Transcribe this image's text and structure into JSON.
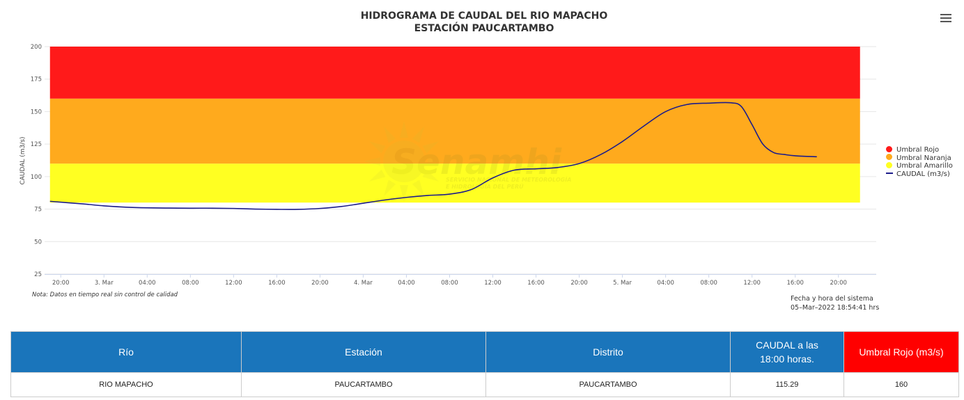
{
  "chart_data": {
    "type": "line",
    "title": "HIDROGRAMA DE CAUDAL DEL RIO MAPACHO",
    "subtitle": "ESTACIÓN PAUCARTAMBO",
    "ylabel": "CAUDAL (m3/s)",
    "ylim": [
      25,
      200
    ],
    "yticks": [
      25,
      50,
      75,
      100,
      125,
      150,
      175,
      200
    ],
    "xlim": [
      "2022-03-02T18:30",
      "2022-03-05T23:30"
    ],
    "xticks": [
      {
        "t": "2022-03-02T20:00",
        "label": "20:00"
      },
      {
        "t": "2022-03-03T00:00",
        "label": "3. Mar"
      },
      {
        "t": "2022-03-03T04:00",
        "label": "04:00"
      },
      {
        "t": "2022-03-03T08:00",
        "label": "08:00"
      },
      {
        "t": "2022-03-03T12:00",
        "label": "12:00"
      },
      {
        "t": "2022-03-03T16:00",
        "label": "16:00"
      },
      {
        "t": "2022-03-03T20:00",
        "label": "20:00"
      },
      {
        "t": "2022-03-04T00:00",
        "label": "4. Mar"
      },
      {
        "t": "2022-03-04T04:00",
        "label": "04:00"
      },
      {
        "t": "2022-03-04T08:00",
        "label": "08:00"
      },
      {
        "t": "2022-03-04T12:00",
        "label": "12:00"
      },
      {
        "t": "2022-03-04T16:00",
        "label": "16:00"
      },
      {
        "t": "2022-03-04T20:00",
        "label": "20:00"
      },
      {
        "t": "2022-03-05T00:00",
        "label": "5. Mar"
      },
      {
        "t": "2022-03-05T04:00",
        "label": "04:00"
      },
      {
        "t": "2022-03-05T08:00",
        "label": "08:00"
      },
      {
        "t": "2022-03-05T12:00",
        "label": "12:00"
      },
      {
        "t": "2022-03-05T16:00",
        "label": "16:00"
      },
      {
        "t": "2022-03-05T20:00",
        "label": "20:00"
      }
    ],
    "bands": [
      {
        "name": "Umbral Amarillo",
        "from": 80,
        "to": 110,
        "color": "#ffff22"
      },
      {
        "name": "Umbral Naranja",
        "from": 110,
        "to": 160,
        "color": "#ffaa1d"
      },
      {
        "name": "Umbral Rojo",
        "from": 160,
        "to": 200,
        "color": "#ff1a1a"
      }
    ],
    "bands_x": [
      "2022-03-02T19:00",
      "2022-03-05T22:00"
    ],
    "series": [
      {
        "name": "CAUDAL (m3/s)",
        "color": "#1c1c8a",
        "points": [
          [
            "2022-03-02T19:00",
            81
          ],
          [
            "2022-03-02T22:00",
            79
          ],
          [
            "2022-03-03T00:00",
            77.5
          ],
          [
            "2022-03-03T02:00",
            76.5
          ],
          [
            "2022-03-03T04:00",
            76
          ],
          [
            "2022-03-03T06:00",
            75.8
          ],
          [
            "2022-03-03T08:00",
            75.7
          ],
          [
            "2022-03-03T10:00",
            75.7
          ],
          [
            "2022-03-03T12:00",
            75.5
          ],
          [
            "2022-03-03T14:00",
            75
          ],
          [
            "2022-03-03T16:00",
            74.8
          ],
          [
            "2022-03-03T18:00",
            74.8
          ],
          [
            "2022-03-03T20:00",
            75.5
          ],
          [
            "2022-03-03T22:00",
            77
          ],
          [
            "2022-03-04T00:00",
            79.5
          ],
          [
            "2022-03-04T02:00",
            82
          ],
          [
            "2022-03-04T04:00",
            84
          ],
          [
            "2022-03-04T06:00",
            85.5
          ],
          [
            "2022-03-04T08:00",
            86.5
          ],
          [
            "2022-03-04T10:00",
            90
          ],
          [
            "2022-03-04T12:00",
            99
          ],
          [
            "2022-03-04T14:00",
            105
          ],
          [
            "2022-03-04T16:00",
            106
          ],
          [
            "2022-03-04T18:00",
            107
          ],
          [
            "2022-03-04T20:00",
            110
          ],
          [
            "2022-03-04T22:00",
            117
          ],
          [
            "2022-03-05T00:00",
            127
          ],
          [
            "2022-03-05T02:00",
            139
          ],
          [
            "2022-03-05T04:00",
            150
          ],
          [
            "2022-03-05T06:00",
            155.5
          ],
          [
            "2022-03-05T08:00",
            156.5
          ],
          [
            "2022-03-05T10:00",
            156.8
          ],
          [
            "2022-03-05T11:00",
            154
          ],
          [
            "2022-03-05T12:00",
            140
          ],
          [
            "2022-03-05T13:00",
            125
          ],
          [
            "2022-03-05T14:00",
            118.5
          ],
          [
            "2022-03-05T15:00",
            117
          ],
          [
            "2022-03-05T16:00",
            116
          ],
          [
            "2022-03-05T18:00",
            115.3
          ]
        ]
      }
    ],
    "legend_position": "right"
  },
  "legend": [
    {
      "label": "Umbral Rojo",
      "color": "#ff1a1a",
      "kind": "dot"
    },
    {
      "label": "Umbral Naranja",
      "color": "#ffaa1d",
      "kind": "dot"
    },
    {
      "label": "Umbral Amarillo",
      "color": "#ffff22",
      "kind": "dot"
    },
    {
      "label": "CAUDAL (m3/s)",
      "color": "#1c1c8a",
      "kind": "line"
    }
  ],
  "watermark": {
    "brand": "Senamhi",
    "line1": "SERVICIO NACIONAL DE METEOROLOGÍA",
    "line2": "E HIDROLOGÍA DEL PERÚ"
  },
  "note": "Nota: Datos en tiempo real sin control de calidad",
  "system_time": {
    "label": "Fecha y hora del sistema",
    "value": "05–Mar–2022 18:54:41 hrs"
  },
  "menu_icon": "hamburger-menu-icon",
  "table": {
    "headers": {
      "rio": "Río",
      "estacion": "Estación",
      "distrito": "Distrito",
      "caudal_line1": "CAUDAL a las",
      "caudal_line2": "18:00 horas.",
      "umbral": "Umbral Rojo (m3/s)"
    },
    "row": {
      "rio": "RIO MAPACHO",
      "estacion": "PAUCARTAMBO",
      "distrito": "PAUCARTAMBO",
      "caudal": "115.29",
      "umbral": "160"
    },
    "header_color": "#1a75bb",
    "umbral_color": "#ff0000"
  }
}
